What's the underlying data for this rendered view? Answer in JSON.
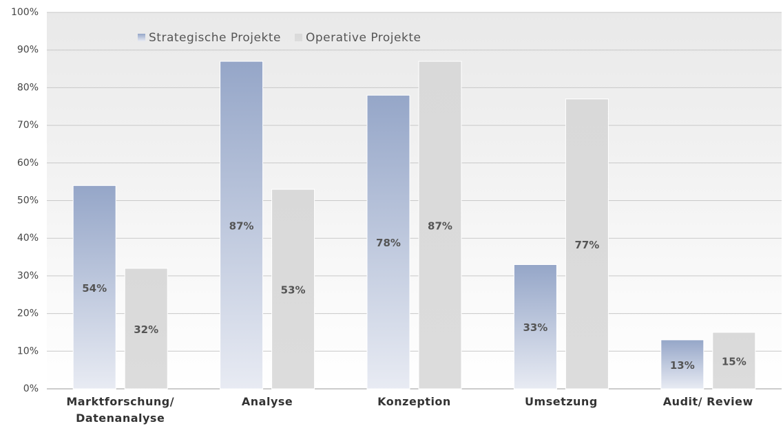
{
  "chart_data": {
    "type": "bar",
    "categories": [
      "Marktforschung/\nDatenanalyse",
      "Analyse",
      "Konzeption",
      "Umsetzung",
      "Audit/ Review"
    ],
    "series": [
      {
        "name": "Strategische Projekte",
        "color": "#95a6c8",
        "values": [
          54,
          87,
          78,
          33,
          13
        ],
        "value_labels": [
          "54%",
          "87%",
          "78%",
          "33%",
          "13%"
        ]
      },
      {
        "name": "Operative Projekte",
        "color": "#d9d9d9",
        "values": [
          32,
          53,
          87,
          77,
          15
        ],
        "value_labels": [
          "32%",
          "53%",
          "87%",
          "77%",
          "15%"
        ]
      }
    ],
    "ylim": [
      0,
      100
    ],
    "yticks": [
      {
        "value": 0,
        "label": "0%"
      },
      {
        "value": 10,
        "label": "10%"
      },
      {
        "value": 20,
        "label": "20%"
      },
      {
        "value": 30,
        "label": "30%"
      },
      {
        "value": 40,
        "label": "40%"
      },
      {
        "value": 50,
        "label": "50%"
      },
      {
        "value": 60,
        "label": "60%"
      },
      {
        "value": 70,
        "label": "70%"
      },
      {
        "value": 80,
        "label": "80%"
      },
      {
        "value": 90,
        "label": "90%"
      },
      {
        "value": 100,
        "label": "100%"
      }
    ],
    "grid": true,
    "legend": "top"
  }
}
